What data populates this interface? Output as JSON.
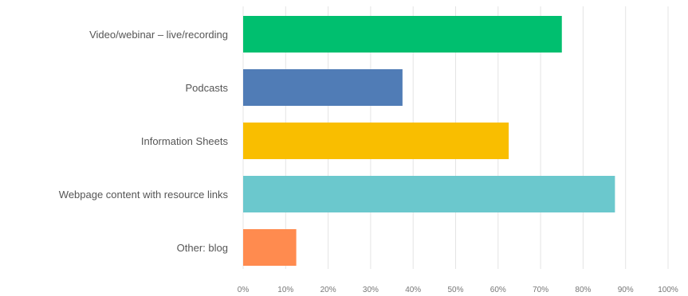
{
  "chart_data": {
    "type": "bar",
    "orientation": "horizontal",
    "title": "",
    "xlabel": "",
    "ylabel": "",
    "categories": [
      "Video/webinar – live/recording",
      "Podcasts",
      "Information Sheets",
      "Webpage content with resource links",
      "Other: blog"
    ],
    "values": [
      75,
      37.5,
      62.5,
      87.5,
      12.5
    ],
    "colors": [
      "#00BF6F",
      "#507CB6",
      "#F9BE00",
      "#6BC8CD",
      "#FF8B4F"
    ],
    "xlim": [
      0,
      100
    ],
    "ticks": [
      "0%",
      "10%",
      "20%",
      "30%",
      "40%",
      "50%",
      "60%",
      "70%",
      "80%",
      "90%",
      "100%"
    ],
    "grid": true,
    "legend": "none"
  }
}
